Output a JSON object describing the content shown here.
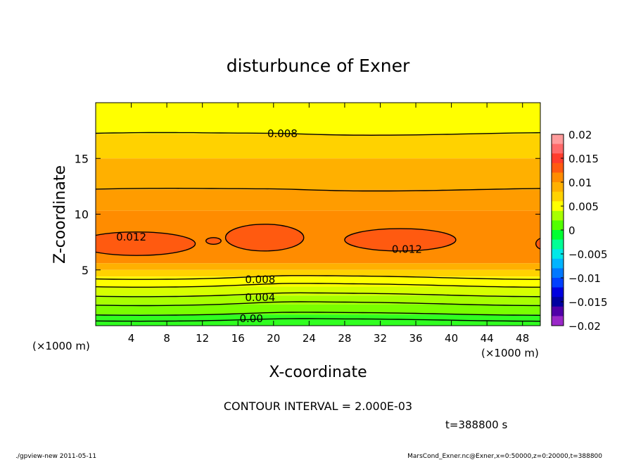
{
  "chart_data": {
    "type": "heatmap",
    "title": "disturbunce of Exner",
    "xlabel": "X-coordinate",
    "ylabel": "Z-coordinate",
    "x_unit_left": "(×1000 m)",
    "x_unit_right": "(×1000 m)",
    "x_range": [
      0,
      50
    ],
    "y_range": [
      0,
      20
    ],
    "x_ticks": [
      4,
      8,
      12,
      16,
      20,
      24,
      28,
      32,
      36,
      40,
      44,
      48
    ],
    "y_ticks": [
      5,
      10,
      15
    ],
    "colorbar": {
      "min": -0.02,
      "max": 0.02,
      "tick_values": [
        0.02,
        0.015,
        0.01,
        0.005,
        0,
        -0.005,
        -0.01,
        -0.015,
        -0.02
      ],
      "tick_labels": [
        "0.02",
        "0.015",
        "0.01",
        "0.005",
        "0",
        "−0.005",
        "−0.01",
        "−0.015",
        "−0.02"
      ],
      "colors_top_to_bottom": [
        "#ff9c9c",
        "#ff6a6a",
        "#ff3c2c",
        "#ff5a10",
        "#ff8c00",
        "#ffb000",
        "#ffd200",
        "#ffff00",
        "#a8ff00",
        "#52ff00",
        "#00ff32",
        "#00ff96",
        "#00e8e8",
        "#00b4ff",
        "#0078ff",
        "#0040ff",
        "#0000e0",
        "#0000a0",
        "#5000a8",
        "#9a28c8"
      ]
    },
    "contour_interval_text": "CONTOUR INTERVAL = 2.000E-03",
    "contour_labels": [
      {
        "text": "0.008",
        "x": 21,
        "z": 17.3
      },
      {
        "text": "0.012",
        "x": 4,
        "z": 8.0
      },
      {
        "text": "0.012",
        "x": 35,
        "z": 6.9
      },
      {
        "text": "0.008",
        "x": 18.5,
        "z": 4.2
      },
      {
        "text": "0.004",
        "x": 18.5,
        "z": 2.6
      },
      {
        "text": "0.00",
        "x": 17.5,
        "z": 0.7
      }
    ],
    "time_label": "t=388800 s"
  },
  "footer": {
    "left": "./gpview-new   2011-05-11",
    "right": "MarsCond_Exner.nc@Exner,x=0:50000,z=0:20000,t=388800"
  },
  "colors": {
    "background": "#ffffff"
  }
}
